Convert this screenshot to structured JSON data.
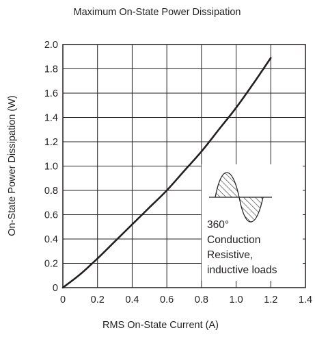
{
  "chart_data": {
    "type": "line",
    "title": "Maximum On-State Power Dissipation",
    "xlabel": "RMS On-State Current  (A)",
    "ylabel": "On-State Power Dissipation  (W)",
    "xlim": [
      0,
      1.4
    ],
    "ylim": [
      0,
      2.0
    ],
    "x_ticks": [
      "0",
      "0.2",
      "0.4",
      "0.6",
      "0.8",
      "1.0",
      "1.2",
      "1.4"
    ],
    "y_ticks": [
      "0",
      "0.2",
      "0.4",
      "0.6",
      "0.8",
      "1.0",
      "1.2",
      "1.4",
      "1.6",
      "1.8",
      "2.0"
    ],
    "grid": true,
    "series": [
      {
        "x": [
          0,
          0.1,
          0.2,
          0.3,
          0.4,
          0.5,
          0.6,
          0.7,
          0.8,
          0.9,
          1.0,
          1.1,
          1.2
        ],
        "values": [
          0,
          0.11,
          0.24,
          0.38,
          0.52,
          0.66,
          0.8,
          0.96,
          1.12,
          1.3,
          1.48,
          1.68,
          1.89
        ]
      }
    ],
    "annotation": {
      "lines": [
        "360°",
        "Conduction",
        "Resistive,",
        "inductive loads"
      ],
      "icon": "hatched-sine-wave-icon"
    },
    "colors": {
      "line": "#231f20",
      "grid": "#231f20"
    }
  }
}
